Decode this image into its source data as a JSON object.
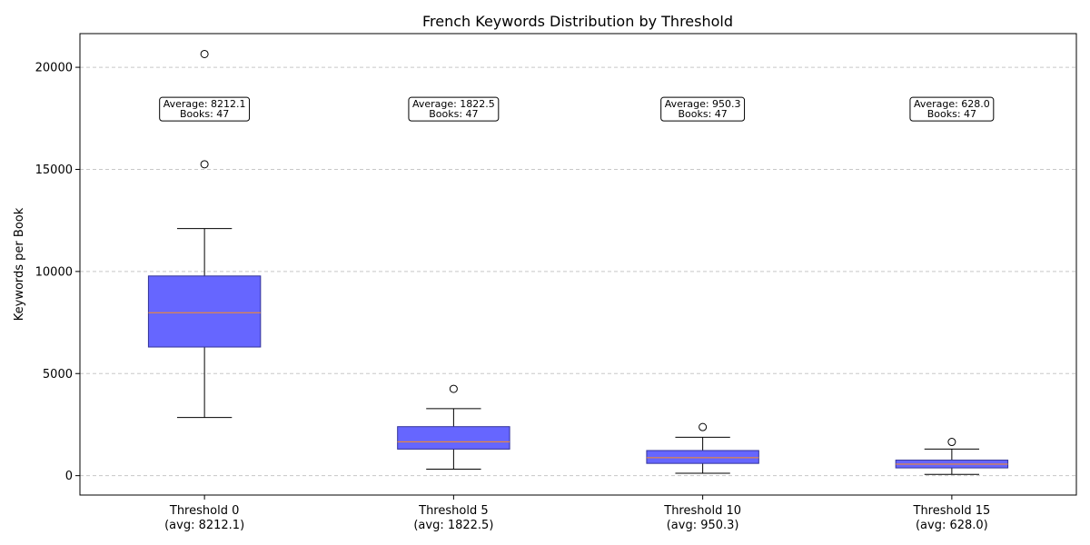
{
  "chart_data": {
    "type": "box",
    "title": "French Keywords Distribution by Threshold",
    "xlabel": "",
    "ylabel": "Keywords per Book",
    "ylim": [
      -950,
      21650
    ],
    "yticks": [
      0,
      5000,
      10000,
      15000,
      20000
    ],
    "grid": "y-dashed",
    "box_color": "#6666ff",
    "box_edge_color": "#333399",
    "median_color": "#ff8c1a",
    "categories": [
      {
        "label": "Threshold 0",
        "sublabel": "(avg: 8212.1)"
      },
      {
        "label": "Threshold 5",
        "sublabel": "(avg: 1822.5)"
      },
      {
        "label": "Threshold 10",
        "sublabel": "(avg: 950.3)"
      },
      {
        "label": "Threshold 15",
        "sublabel": "(avg: 628.0)"
      }
    ],
    "boxes": [
      {
        "whisker_low": 2850,
        "q1": 6300,
        "median": 7980,
        "q3": 9780,
        "whisker_high": 12100,
        "outliers": [
          15250,
          20650
        ]
      },
      {
        "whisker_low": 320,
        "q1": 1300,
        "median": 1660,
        "q3": 2400,
        "whisker_high": 3280,
        "outliers": [
          4250
        ]
      },
      {
        "whisker_low": 120,
        "q1": 600,
        "median": 880,
        "q3": 1230,
        "whisker_high": 1880,
        "outliers": [
          2380
        ]
      },
      {
        "whisker_low": 60,
        "q1": 380,
        "median": 560,
        "q3": 760,
        "whisker_high": 1300,
        "outliers": [
          1650
        ]
      }
    ],
    "annotations": [
      {
        "line1": "Average: 8212.1",
        "line2": "Books: 47"
      },
      {
        "line1": "Average: 1822.5",
        "line2": "Books: 47"
      },
      {
        "line1": "Average: 950.3",
        "line2": "Books: 47"
      },
      {
        "line1": "Average: 628.0",
        "line2": "Books: 47"
      }
    ],
    "annotation_y": 17950
  }
}
